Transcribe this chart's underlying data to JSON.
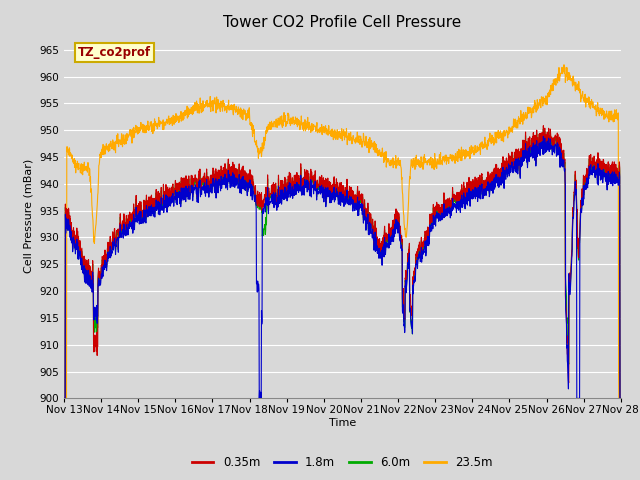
{
  "title": "Tower CO2 Profile Cell Pressure",
  "ylabel": "Cell Pressure (mBar)",
  "xlabel": "Time",
  "ylim": [
    900,
    968
  ],
  "yticks": [
    900,
    905,
    910,
    915,
    920,
    925,
    930,
    935,
    940,
    945,
    950,
    955,
    960,
    965
  ],
  "bg_color": "#d8d8d8",
  "plot_bg_color": "#d8d8d8",
  "grid_color": "#ffffff",
  "series_colors": [
    "#cc0000",
    "#0000cc",
    "#00aa00",
    "#ffaa00"
  ],
  "series_labels": [
    "0.35m",
    "1.8m",
    "6.0m",
    "23.5m"
  ],
  "x_tick_labels": [
    "Nov 13",
    "Nov 14",
    "Nov 15",
    "Nov 16",
    "Nov 17",
    "Nov 18",
    "Nov 19",
    "Nov 20",
    "Nov 21",
    "Nov 22",
    "Nov 23",
    "Nov 24",
    "Nov 25",
    "Nov 26",
    "Nov 27",
    "Nov 28"
  ],
  "legend_label": "TZ_co2prof",
  "legend_bg": "#ffffcc",
  "legend_border": "#ccaa00",
  "title_fontsize": 11,
  "axis_fontsize": 8,
  "tick_fontsize": 7.5
}
